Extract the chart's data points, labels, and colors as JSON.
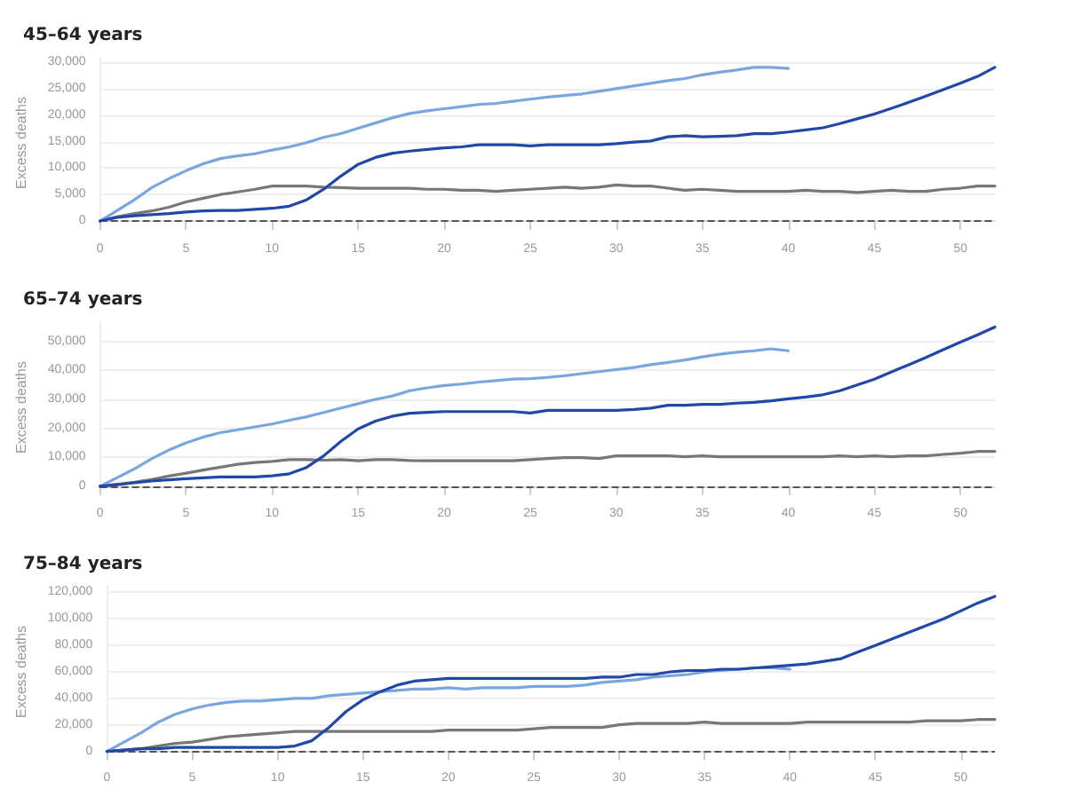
{
  "chart_data": [
    {
      "type": "line",
      "title": "45–64 years",
      "ylabel": "Excess deaths",
      "xlim": [
        0,
        52
      ],
      "xticks": [
        0,
        5,
        10,
        15,
        20,
        25,
        30,
        35,
        40,
        45,
        50
      ],
      "ylim": [
        -1500,
        31000
      ],
      "yticks": [
        {
          "value": 0,
          "label": "0"
        },
        {
          "value": 5000,
          "label": "5,000"
        },
        {
          "value": 10000,
          "label": "10,000"
        },
        {
          "value": 15000,
          "label": "15,000"
        },
        {
          "value": 20000,
          "label": "20,000"
        },
        {
          "value": 25000,
          "label": "25,000"
        },
        {
          "value": 30000,
          "label": "30,000"
        }
      ],
      "grid": "y",
      "marker": "none",
      "line_style": "solid",
      "ref_lines": [
        {
          "axis": "y",
          "value": 0,
          "label": null,
          "color": "#555555",
          "line_style": "dashed"
        }
      ],
      "series": [
        {
          "color": "#777777",
          "x": [
            0,
            1,
            2,
            3,
            4,
            5,
            6,
            7,
            8,
            9,
            10,
            11,
            12,
            13,
            14,
            15,
            16,
            17,
            18,
            19,
            20,
            21,
            22,
            23,
            24,
            25,
            26,
            27,
            28,
            29,
            30,
            31,
            32,
            33,
            34,
            35,
            36,
            37,
            38,
            39,
            40,
            41,
            42,
            43,
            44,
            45,
            46,
            47,
            48,
            49,
            50,
            51,
            52
          ],
          "values": [
            0,
            800,
            1400,
            1900,
            2600,
            3600,
            4300,
            5000,
            5500,
            6000,
            6600,
            6600,
            6600,
            6400,
            6300,
            6200,
            6200,
            6200,
            6200,
            6000,
            6000,
            5800,
            5800,
            5600,
            5800,
            6000,
            6200,
            6400,
            6200,
            6400,
            6800,
            6600,
            6600,
            6200,
            5800,
            6000,
            5800,
            5600,
            5600,
            5600,
            5600,
            5800,
            5600,
            5600,
            5400,
            5600,
            5800,
            5600,
            5600,
            6000,
            6200,
            6600,
            6600
          ]
        },
        {
          "color": "#7aa6e0",
          "x": [
            0,
            1,
            2,
            3,
            4,
            5,
            6,
            7,
            8,
            9,
            10,
            11,
            12,
            13,
            14,
            15,
            16,
            17,
            18,
            19,
            20,
            21,
            22,
            23,
            24,
            25,
            26,
            27,
            28,
            29,
            30,
            31,
            32,
            33,
            34,
            35,
            36,
            37,
            38,
            39,
            40
          ],
          "values": [
            0,
            2000,
            4000,
            6300,
            8000,
            9500,
            10800,
            11800,
            12300,
            12700,
            13400,
            14000,
            14800,
            15800,
            16500,
            17500,
            18500,
            19500,
            20300,
            20800,
            21200,
            21600,
            22000,
            22200,
            22600,
            23000,
            23400,
            23700,
            24000,
            24500,
            25000,
            25500,
            26000,
            26500,
            26900,
            27600,
            28100,
            28500,
            29000,
            29000,
            28800
          ]
        },
        {
          "color": "#2148a8",
          "x": [
            0,
            1,
            2,
            3,
            4,
            5,
            6,
            7,
            8,
            9,
            10,
            11,
            12,
            13,
            14,
            15,
            16,
            17,
            18,
            19,
            20,
            21,
            22,
            23,
            24,
            25,
            26,
            27,
            28,
            29,
            30,
            31,
            32,
            33,
            34,
            35,
            36,
            37,
            38,
            39,
            40,
            41,
            42,
            43,
            44,
            45,
            46,
            47,
            48,
            49,
            50,
            51,
            52
          ],
          "values": [
            0,
            700,
            1000,
            1200,
            1400,
            1700,
            1900,
            2000,
            2000,
            2200,
            2400,
            2800,
            4000,
            6000,
            8500,
            10700,
            12000,
            12800,
            13200,
            13500,
            13800,
            14000,
            14400,
            14400,
            14400,
            14200,
            14400,
            14400,
            14400,
            14400,
            14600,
            14900,
            15100,
            15900,
            16100,
            15900,
            16000,
            16100,
            16500,
            16500,
            16800,
            17200,
            17600,
            18400,
            19300,
            20200,
            21300,
            22400,
            23600,
            24800,
            26000,
            27300,
            29000
          ]
        }
      ]
    },
    {
      "type": "line",
      "title": "65–74 years",
      "ylabel": "Excess deaths",
      "xlim": [
        0,
        52
      ],
      "xticks": [
        0,
        5,
        10,
        15,
        20,
        25,
        30,
        35,
        40,
        45,
        50
      ],
      "ylim": [
        -2500,
        57000
      ],
      "yticks": [
        {
          "value": 0,
          "label": "0"
        },
        {
          "value": 10000,
          "label": "10,000"
        },
        {
          "value": 20000,
          "label": "20,000"
        },
        {
          "value": 30000,
          "label": "30,000"
        },
        {
          "value": 40000,
          "label": "40,000"
        },
        {
          "value": 50000,
          "label": "50,000"
        }
      ],
      "grid": "y",
      "marker": "none",
      "line_style": "solid",
      "ref_lines": [
        {
          "axis": "y",
          "value": 0,
          "label": null,
          "color": "#555555",
          "line_style": "dashed"
        }
      ],
      "series": [
        {
          "color": "#777777",
          "x": [
            0,
            1,
            2,
            3,
            4,
            5,
            6,
            7,
            8,
            9,
            10,
            11,
            12,
            13,
            14,
            15,
            16,
            17,
            18,
            19,
            20,
            21,
            22,
            23,
            24,
            25,
            26,
            27,
            28,
            29,
            30,
            31,
            32,
            33,
            34,
            35,
            36,
            37,
            38,
            39,
            40,
            41,
            42,
            43,
            44,
            45,
            46,
            47,
            48,
            49,
            50,
            51,
            52
          ],
          "values": [
            0,
            700,
            1400,
            2300,
            3500,
            4500,
            5600,
            6600,
            7600,
            8200,
            8600,
            9200,
            9200,
            9000,
            9200,
            8800,
            9200,
            9200,
            8900,
            8800,
            8800,
            8800,
            8800,
            8800,
            8800,
            9200,
            9600,
            9900,
            9900,
            9600,
            10500,
            10500,
            10500,
            10500,
            10200,
            10500,
            10200,
            10200,
            10200,
            10200,
            10200,
            10200,
            10200,
            10500,
            10200,
            10500,
            10200,
            10500,
            10500,
            11000,
            11400,
            12000,
            12000
          ]
        },
        {
          "color": "#7aa6e0",
          "x": [
            0,
            1,
            2,
            3,
            4,
            5,
            6,
            7,
            8,
            9,
            10,
            11,
            12,
            13,
            14,
            15,
            16,
            17,
            18,
            19,
            20,
            21,
            22,
            23,
            24,
            25,
            26,
            27,
            28,
            29,
            30,
            31,
            32,
            33,
            34,
            35,
            36,
            37,
            38,
            39,
            40
          ],
          "values": [
            0,
            3000,
            6000,
            9500,
            12500,
            15000,
            17000,
            18500,
            19500,
            20500,
            21500,
            22800,
            24000,
            25500,
            27000,
            28500,
            30000,
            31200,
            33000,
            34000,
            34800,
            35300,
            36000,
            36500,
            37000,
            37200,
            37600,
            38200,
            38900,
            39600,
            40300,
            41000,
            42000,
            42800,
            43600,
            44700,
            45600,
            46300,
            46800,
            47500,
            46800
          ]
        },
        {
          "color": "#2148a8",
          "x": [
            0,
            1,
            2,
            3,
            4,
            5,
            6,
            7,
            8,
            9,
            10,
            11,
            12,
            13,
            14,
            15,
            16,
            17,
            18,
            19,
            20,
            21,
            22,
            23,
            24,
            25,
            26,
            27,
            28,
            29,
            30,
            31,
            32,
            33,
            34,
            35,
            36,
            37,
            38,
            39,
            40,
            41,
            42,
            43,
            44,
            45,
            46,
            47,
            48,
            49,
            50,
            51,
            52
          ],
          "values": [
            0,
            500,
            1200,
            1800,
            2200,
            2600,
            2900,
            3200,
            3200,
            3200,
            3600,
            4300,
            6500,
            10500,
            15500,
            19800,
            22500,
            24200,
            25200,
            25500,
            25800,
            25800,
            25800,
            25800,
            25800,
            25300,
            26200,
            26200,
            26200,
            26200,
            26200,
            26500,
            27000,
            28000,
            28000,
            28300,
            28300,
            28700,
            29000,
            29500,
            30200,
            30800,
            31600,
            33000,
            35000,
            37000,
            39500,
            42000,
            44500,
            47200,
            49800,
            52300,
            55000
          ]
        }
      ]
    },
    {
      "type": "line",
      "title": "75–84 years",
      "ylabel": "Excess deaths",
      "xlim": [
        0,
        52
      ],
      "xticks": [
        0,
        5,
        10,
        15,
        20,
        25,
        30,
        35,
        40,
        45,
        50
      ],
      "ylim": [
        -5000,
        125000
      ],
      "yticks": [
        {
          "value": 0,
          "label": "0"
        },
        {
          "value": 20000,
          "label": "20,000"
        },
        {
          "value": 40000,
          "label": "40,000"
        },
        {
          "value": 60000,
          "label": "60,000"
        },
        {
          "value": 80000,
          "label": "80,000"
        },
        {
          "value": 100000,
          "label": "100,000"
        },
        {
          "value": 120000,
          "label": "120,000"
        }
      ],
      "grid": "y",
      "marker": "none",
      "line_style": "solid",
      "ref_lines": [
        {
          "axis": "y",
          "value": 0,
          "label": null,
          "color": "#555555",
          "line_style": "dashed"
        }
      ],
      "series": [
        {
          "color": "#777777",
          "x": [
            0,
            1,
            2,
            3,
            4,
            5,
            6,
            7,
            8,
            9,
            10,
            11,
            12,
            13,
            14,
            15,
            16,
            17,
            18,
            19,
            20,
            21,
            22,
            23,
            24,
            25,
            26,
            27,
            28,
            29,
            30,
            31,
            32,
            33,
            34,
            35,
            36,
            37,
            38,
            39,
            40,
            41,
            42,
            43,
            44,
            45,
            46,
            47,
            48,
            49,
            50,
            51,
            52
          ],
          "values": [
            0,
            1000,
            2000,
            4000,
            6000,
            7000,
            9000,
            11000,
            12000,
            13000,
            14000,
            15000,
            15000,
            15000,
            15000,
            15000,
            15000,
            15000,
            15000,
            15000,
            16000,
            16000,
            16000,
            16000,
            16000,
            17000,
            18000,
            18000,
            18000,
            18000,
            20000,
            21000,
            21000,
            21000,
            21000,
            22000,
            21000,
            21000,
            21000,
            21000,
            21000,
            22000,
            22000,
            22000,
            22000,
            22000,
            22000,
            22000,
            23000,
            23000,
            23000,
            24000,
            24000
          ]
        },
        {
          "color": "#7aa6e0",
          "x": [
            0,
            1,
            2,
            3,
            4,
            5,
            6,
            7,
            8,
            9,
            10,
            11,
            12,
            13,
            14,
            15,
            16,
            17,
            18,
            19,
            20,
            21,
            22,
            23,
            24,
            25,
            26,
            27,
            28,
            29,
            30,
            31,
            32,
            33,
            34,
            35,
            36,
            37,
            38,
            39,
            40
          ],
          "values": [
            0,
            7000,
            14000,
            22000,
            28000,
            32000,
            35000,
            37000,
            38000,
            38000,
            39000,
            40000,
            40000,
            42000,
            43000,
            44000,
            45000,
            46000,
            47000,
            47000,
            48000,
            47000,
            48000,
            48000,
            48000,
            49000,
            49000,
            49000,
            50000,
            52000,
            53000,
            54000,
            56000,
            57000,
            58000,
            60000,
            61000,
            62000,
            63000,
            63000,
            62000
          ]
        },
        {
          "color": "#2148a8",
          "x": [
            0,
            1,
            2,
            3,
            4,
            5,
            6,
            7,
            8,
            9,
            10,
            11,
            12,
            13,
            14,
            15,
            16,
            17,
            18,
            19,
            20,
            21,
            22,
            23,
            24,
            25,
            26,
            27,
            28,
            29,
            30,
            31,
            32,
            33,
            34,
            35,
            36,
            37,
            38,
            39,
            40,
            41,
            42,
            43,
            44,
            45,
            46,
            47,
            48,
            49,
            50,
            51,
            52
          ],
          "values": [
            0,
            1000,
            2000,
            2000,
            3000,
            3000,
            3000,
            3000,
            3000,
            3000,
            3000,
            4000,
            8000,
            18000,
            30000,
            39000,
            45000,
            50000,
            53000,
            54000,
            55000,
            55000,
            55000,
            55000,
            55000,
            55000,
            55000,
            55000,
            55000,
            56000,
            56000,
            58000,
            58000,
            60000,
            61000,
            61000,
            62000,
            62000,
            63000,
            64000,
            65000,
            66000,
            68000,
            70000,
            75000,
            80000,
            85000,
            90000,
            95000,
            100000,
            106000,
            112000,
            117000
          ]
        }
      ]
    }
  ]
}
